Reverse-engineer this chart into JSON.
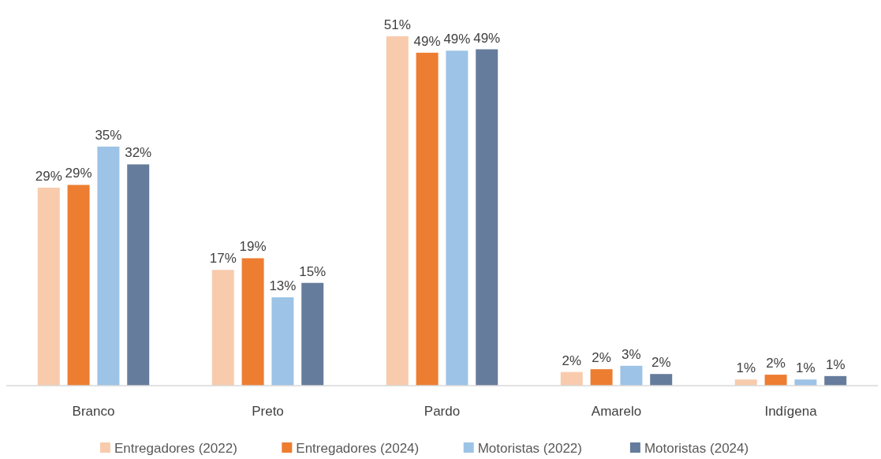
{
  "chart_data": {
    "type": "bar",
    "categories": [
      "Branco",
      "Preto",
      "Pardo",
      "Amarelo",
      "Indígena"
    ],
    "series": [
      {
        "name": "Entregadores (2022)",
        "color": "#f8cbad",
        "values": [
          28.9,
          16.9,
          51,
          2.0,
          0.9
        ],
        "value_labels": [
          "29%",
          "17%",
          "51%",
          "2%",
          "1%"
        ]
      },
      {
        "name": "Entregadores (2024)",
        "color": "#ed7d31",
        "values": [
          29.3,
          18.6,
          48.6,
          2.4,
          1.6
        ],
        "value_labels": [
          "29%",
          "19%",
          "49%",
          "2%",
          "2%"
        ]
      },
      {
        "name": "Motoristas (2022)",
        "color": "#9dc3e6",
        "values": [
          34.9,
          12.9,
          48.9,
          2.9,
          0.9
        ],
        "value_labels": [
          "35%",
          "13%",
          "49%",
          "3%",
          "1%"
        ]
      },
      {
        "name": "Motoristas (2024)",
        "color": "#667c9c",
        "values": [
          32.3,
          15.0,
          49.1,
          1.7,
          1.4
        ],
        "value_labels": [
          "32%",
          "15%",
          "49%",
          "2%",
          "1%"
        ]
      }
    ],
    "legend": "bottom"
  }
}
